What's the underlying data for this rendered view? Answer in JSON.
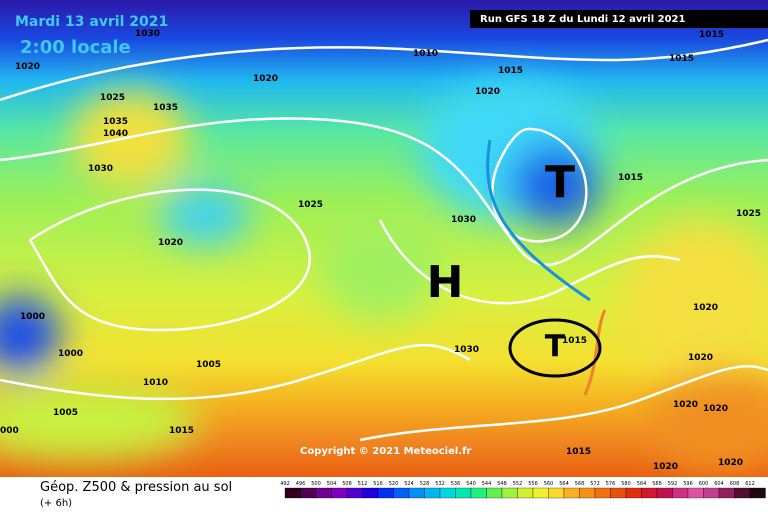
{
  "header": {
    "date": "Mardi 13 avril 2021",
    "time": "2:00 locale",
    "run": "Run GFS 18 Z du Lundi 12 avril 2021"
  },
  "copyright": "Copyright © 2021 Meteociel.fr",
  "footer": {
    "title": "Géop. Z500 & pression au sol",
    "step": "(+ 6h)"
  },
  "pressure_systems": [
    "H",
    "T",
    "T"
  ],
  "isobar_labels": [
    "1030",
    "1020",
    "1020",
    "1010",
    "1015",
    "1020",
    "1015",
    "1015",
    "1025",
    "1035",
    "1035",
    "1040",
    "1030",
    "1015",
    "1025",
    "1020",
    "1030",
    "1025",
    "1000",
    "1000",
    "1005",
    "1010",
    "1030",
    "1015",
    "1020",
    "1020",
    "1020",
    "1020",
    "1005",
    "1015",
    "000",
    "1015",
    "1020",
    "1020"
  ],
  "legend": {
    "scale": [
      492,
      496,
      500,
      504,
      508,
      512,
      516,
      520,
      524,
      528,
      532,
      536,
      540,
      544,
      548,
      552,
      556,
      560,
      564,
      568,
      572,
      576,
      580,
      584,
      588,
      592,
      596,
      600,
      604,
      608,
      612
    ]
  }
}
